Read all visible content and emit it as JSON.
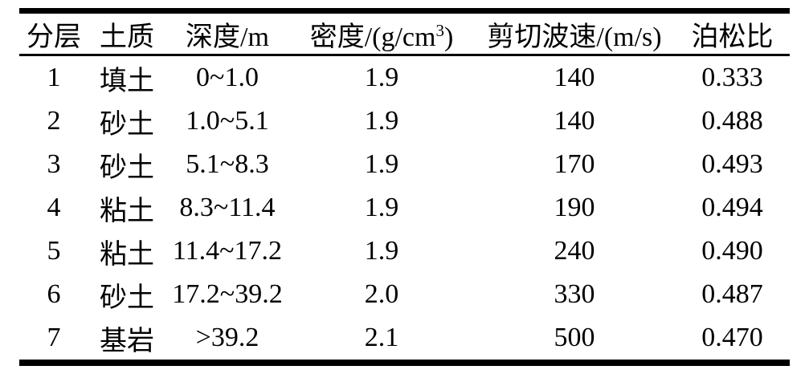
{
  "table": {
    "headers": {
      "layer": "分层",
      "soil": "土质",
      "depth": "深度/m",
      "density_prefix": "密度/(g/cm",
      "density_sup": "3",
      "density_suffix": ")",
      "shear": "剪切波速/(m/s)",
      "poisson": "泊松比"
    },
    "rows": [
      [
        "1",
        "填土",
        "0~1.0",
        "1.9",
        "140",
        "0.333"
      ],
      [
        "2",
        "砂土",
        "1.0~5.1",
        "1.9",
        "140",
        "0.488"
      ],
      [
        "3",
        "砂土",
        "5.1~8.3",
        "1.9",
        "170",
        "0.493"
      ],
      [
        "4",
        "粘土",
        "8.3~11.4",
        "1.9",
        "190",
        "0.494"
      ],
      [
        "5",
        "粘土",
        "11.4~17.2",
        "1.9",
        "240",
        "0.490"
      ],
      [
        "6",
        "砂土",
        "17.2~39.2",
        "2.0",
        "330",
        "0.487"
      ],
      [
        "7",
        "基岩",
        ">39.2",
        "2.1",
        "500",
        "0.470"
      ]
    ]
  }
}
